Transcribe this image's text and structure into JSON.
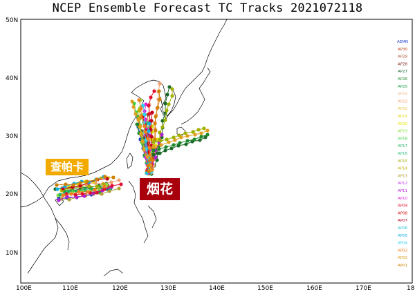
{
  "title": "NCEP Ensemble Forecast TC Tracks 2021072118",
  "axes": {
    "x_ticks": [
      "100E",
      "110E",
      "120E",
      "130E",
      "140E",
      "150E",
      "160E",
      "170E",
      "18"
    ],
    "y_ticks": [
      "50N",
      "40N",
      "30N",
      "20N",
      "10N"
    ]
  },
  "storm_labels": {
    "chaba": "查帕卡",
    "infa": "烟花"
  },
  "legend": {
    "items": [
      {
        "label": "AEMN",
        "color": "#1c3fcf"
      },
      {
        "label": "AP30",
        "color": "#b8420f"
      },
      {
        "label": "AP29",
        "color": "#a0522d"
      },
      {
        "label": "AP28",
        "color": "#7a1f12"
      },
      {
        "label": "AP27",
        "color": "#1a6b2a"
      },
      {
        "label": "AP26",
        "color": "#1f8a2b"
      },
      {
        "label": "AP25",
        "color": "#15a04a"
      },
      {
        "label": "AP24",
        "color": "#f5b98a"
      },
      {
        "label": "AP23",
        "color": "#f0a070"
      },
      {
        "label": "AP22",
        "color": "#e8c040"
      },
      {
        "label": "AP21",
        "color": "#d8d800"
      },
      {
        "label": "AP20",
        "color": "#e6e600"
      },
      {
        "label": "AP19",
        "color": "#90e040"
      },
      {
        "label": "AP18",
        "color": "#40d040"
      },
      {
        "label": "AP17",
        "color": "#20b060"
      },
      {
        "label": "AP16",
        "color": "#30c080"
      },
      {
        "label": "AP15",
        "color": "#a0b000"
      },
      {
        "label": "AP14",
        "color": "#c0b000"
      },
      {
        "label": "AP13",
        "color": "#b0a030"
      },
      {
        "label": "AP12",
        "color": "#c040e0"
      },
      {
        "label": "AP11",
        "color": "#b020d0"
      },
      {
        "label": "AP10",
        "color": "#e020e0"
      },
      {
        "label": "AP09",
        "color": "#e01030"
      },
      {
        "label": "AP08",
        "color": "#d00000"
      },
      {
        "label": "AP07",
        "color": "#c00020"
      },
      {
        "label": "AP06",
        "color": "#20c0d0"
      },
      {
        "label": "AP05",
        "color": "#10b0e0"
      },
      {
        "label": "AP04",
        "color": "#30d0f0"
      },
      {
        "label": "AP03",
        "color": "#f08020"
      },
      {
        "label": "AP02",
        "color": "#e0a020"
      },
      {
        "label": "AP01",
        "color": "#d08000"
      }
    ]
  },
  "colors": {
    "coast": "#000000",
    "frame": "#000000",
    "infa_label_bg": "#a8000c",
    "chaba_label_bg": "#f2a900"
  }
}
